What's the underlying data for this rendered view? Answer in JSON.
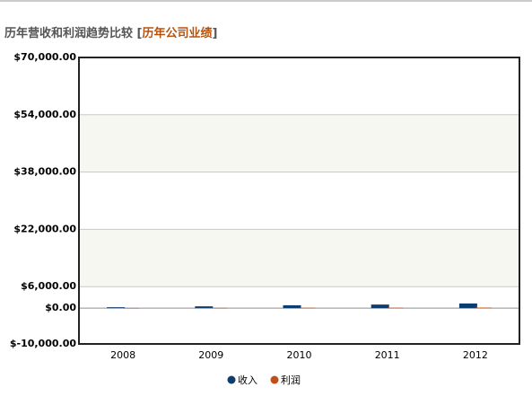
{
  "chart_data": {
    "type": "bar",
    "title": "历年营收和利润趋势比较 [",
    "title_link": "历年公司业绩",
    "title_end": "]",
    "categories": [
      "2008",
      "2009",
      "2010",
      "2011",
      "2012"
    ],
    "series": [
      {
        "name": "收入",
        "color": "#0d3d6e",
        "values": [
          250,
          500,
          800,
          1000,
          1300
        ]
      },
      {
        "name": "利润",
        "color": "#c0501a",
        "values": [
          50,
          80,
          100,
          120,
          150
        ]
      }
    ],
    "ylim": [
      -10000,
      70000
    ],
    "yticks": [
      {
        "value": -10000,
        "label": "$-10,000.00"
      },
      {
        "value": 0,
        "label": "$0.00"
      },
      {
        "value": 6000,
        "label": "$6,000.00"
      },
      {
        "value": 22000,
        "label": "$22,000.00"
      },
      {
        "value": 38000,
        "label": "$38,000.00"
      },
      {
        "value": 54000,
        "label": "$54,000.00"
      },
      {
        "value": 70000,
        "label": "$70,000.00"
      }
    ],
    "grid": true,
    "legend": "bottom"
  }
}
